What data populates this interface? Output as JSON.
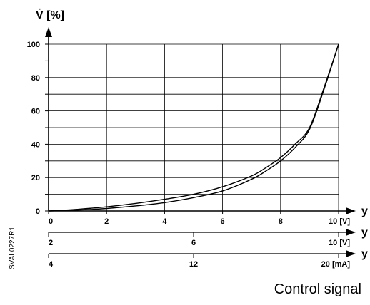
{
  "chart_data": {
    "type": "line",
    "ylabel": "V̇ [%]",
    "ylim": [
      0,
      100
    ],
    "yticks": [
      0,
      20,
      40,
      60,
      80,
      100
    ],
    "grid": true,
    "x_axes": [
      {
        "label": "y",
        "ticks": [
          "0",
          "2",
          "4",
          "6",
          "8",
          "10 [V]"
        ],
        "range": [
          0,
          10
        ]
      },
      {
        "label": "y",
        "ticks": [
          "2",
          "6",
          "10 [V]"
        ],
        "range": [
          2,
          10
        ]
      },
      {
        "label": "y",
        "ticks": [
          "4",
          "12",
          "20 [mA]"
        ],
        "range": [
          4,
          20
        ]
      }
    ],
    "series": [
      {
        "x": [
          0,
          1,
          2,
          3,
          4,
          5,
          6,
          7,
          7.5,
          8,
          8.5,
          9,
          9.5,
          10
        ],
        "y": [
          0,
          1,
          2.5,
          4.5,
          7,
          10,
          14.5,
          21,
          26,
          32,
          40,
          50,
          74,
          100
        ]
      },
      {
        "x": [
          0,
          1,
          2,
          3,
          4,
          5,
          6,
          7,
          7.5,
          8,
          8.5,
          9,
          9.5,
          10
        ],
        "y": [
          0,
          0.5,
          1.5,
          3,
          5,
          8,
          12,
          19,
          24,
          30,
          38,
          49,
          73,
          100
        ]
      }
    ]
  },
  "figure_code": "SVAL0227R1",
  "caption": "Control signal"
}
